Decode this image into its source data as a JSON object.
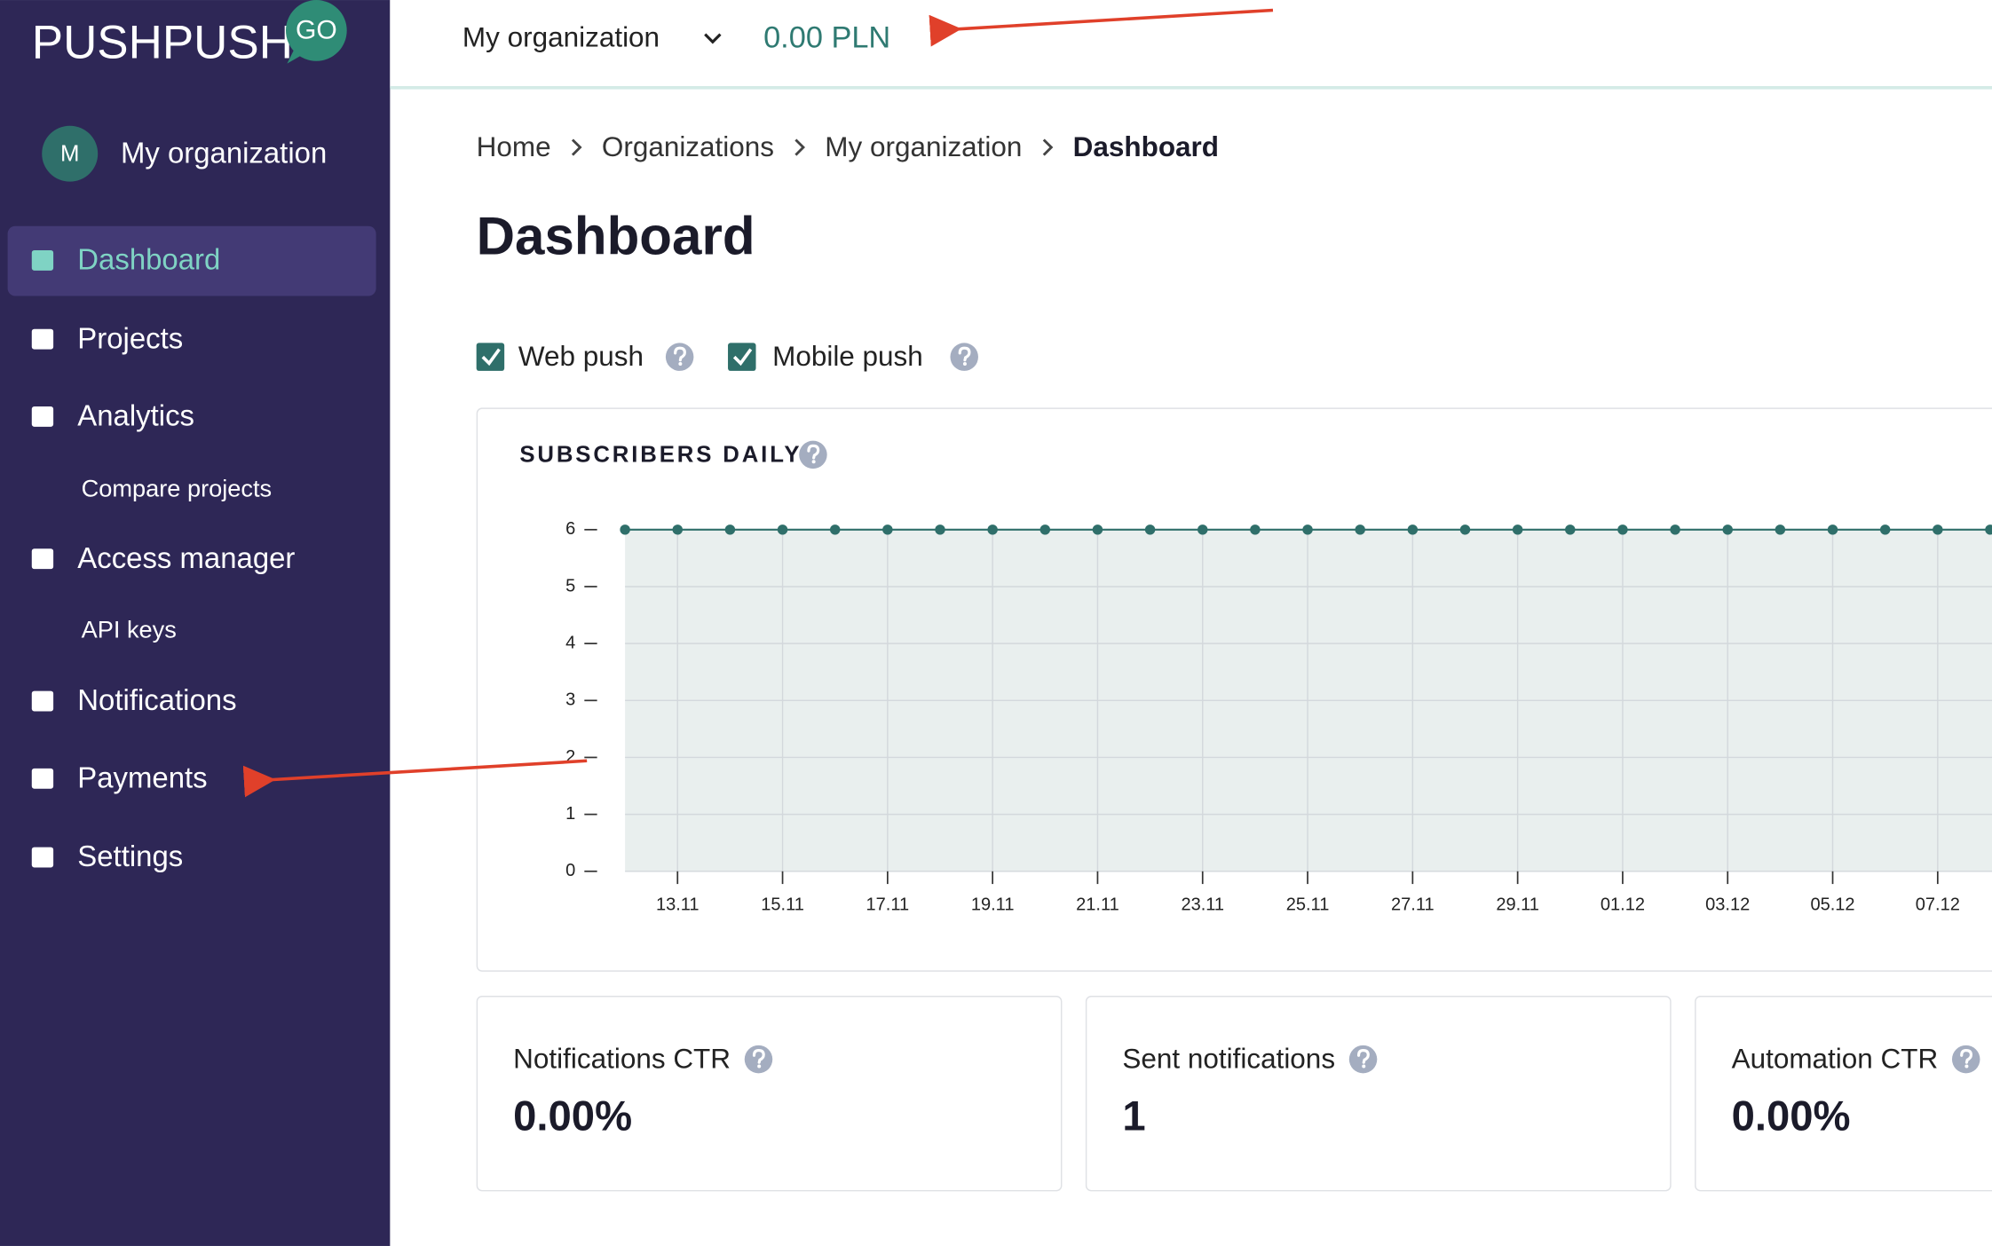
{
  "logo": {
    "text": "PUSHPUSH",
    "badge": "GO"
  },
  "sidebar": {
    "org_initial": "M",
    "org_name": "My organization",
    "menu": [
      {
        "label": "Dashboard",
        "level": 1,
        "active": true
      },
      {
        "label": "Projects",
        "level": 1
      },
      {
        "label": "Analytics",
        "level": 1
      },
      {
        "label": "Compare projects",
        "level": 2
      },
      {
        "label": "Access manager",
        "level": 1
      },
      {
        "label": "API keys",
        "level": 2
      },
      {
        "label": "Notifications",
        "level": 1
      },
      {
        "label": "Payments",
        "level": 1
      },
      {
        "label": "Settings",
        "level": 1
      }
    ]
  },
  "topbar": {
    "org_select": "My organization",
    "balance": "0.00 PLN"
  },
  "breadcrumb": [
    "Home",
    "Organizations",
    "My organization",
    "Dashboard"
  ],
  "page_title": "Dashboard",
  "filters": [
    "Web push",
    "Mobile push"
  ],
  "chart_data": {
    "type": "line",
    "title": "SUBSCRIBERS DAILY",
    "categories": [
      null,
      "13.11",
      null,
      "15.11",
      null,
      "17.11",
      null,
      "19.11",
      null,
      "21.11",
      null,
      "23.11",
      null,
      "25.11",
      null,
      "27.11",
      null,
      "29.11",
      null,
      "01.12",
      null,
      "03.12",
      null,
      "05.12",
      null,
      "07.12",
      null
    ],
    "series": [
      {
        "color": "#2f6f6a",
        "values": [
          6,
          6,
          6,
          6,
          6,
          6,
          6,
          6,
          6,
          6,
          6,
          6,
          6,
          6,
          6,
          6,
          6,
          6,
          6,
          6,
          6,
          6,
          6,
          6,
          6,
          6,
          6
        ]
      }
    ],
    "ylim": [
      0,
      6
    ],
    "yticks": [
      0,
      1,
      2,
      3,
      4,
      5,
      6
    ],
    "grid": true
  },
  "stats": [
    {
      "label": "Notifications CTR",
      "value": "0.00%"
    },
    {
      "label": "Sent notifications",
      "value": "1"
    },
    {
      "label": "Automation CTR",
      "value": "0.00%"
    }
  ]
}
